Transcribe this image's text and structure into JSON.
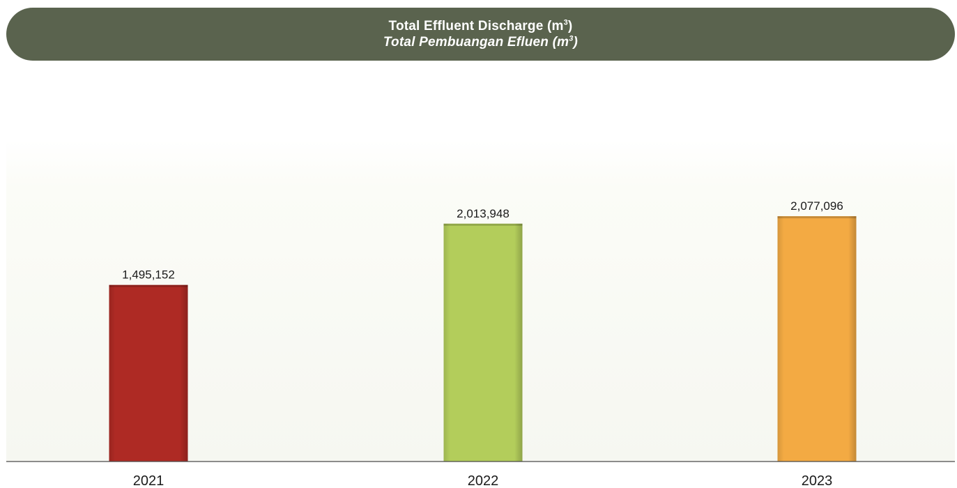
{
  "header": {
    "title_main": "Total Effluent Discharge (m",
    "title_main_sup": "3",
    "title_main_close": ")",
    "title_sub": "Total Pembuangan Efluen (m",
    "title_sub_sup": "3",
    "title_sub_close": ")"
  },
  "chart_data": {
    "type": "bar",
    "title": "Total Effluent Discharge (m³) / Total Pembuangan Efluen (m³)",
    "xlabel": "",
    "ylabel": "",
    "categories": [
      "2021",
      "2022",
      "2023"
    ],
    "values": [
      1495152,
      2013948,
      2077096
    ],
    "value_labels": [
      "1,495,152",
      "2,013,948",
      "2,077,096"
    ],
    "colors": [
      "#ae2a24",
      "#b3cd5b",
      "#f3aa43"
    ],
    "ylim": [
      0,
      2550000
    ],
    "grid": false,
    "legend": "none"
  }
}
